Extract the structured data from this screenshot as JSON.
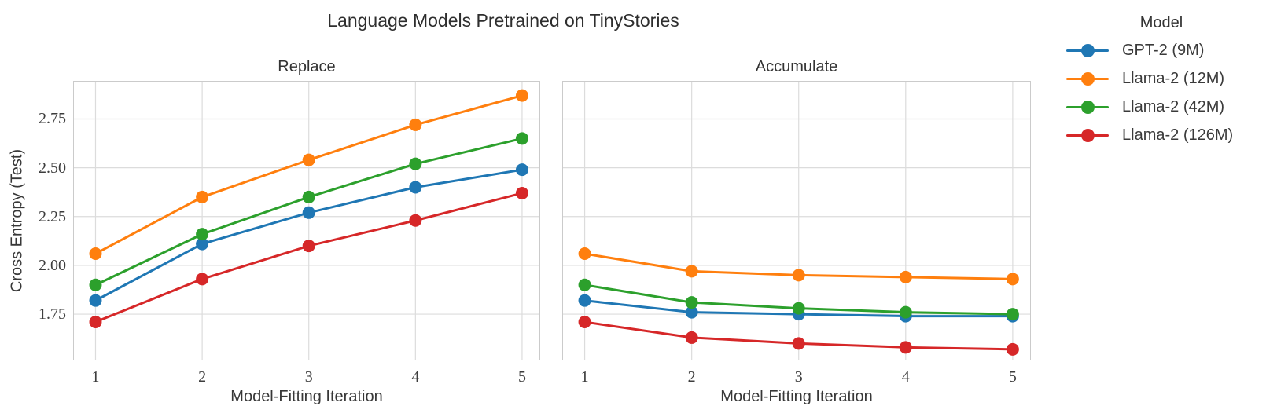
{
  "figure": {
    "title": "Language Models Pretrained on TinyStories",
    "background": "#ffffff"
  },
  "chart_data": {
    "type": "line",
    "title": "Language Models Pretrained on TinyStories",
    "xlabel": "Model-Fitting Iteration",
    "ylabel": "Cross Entropy (Test)",
    "x": [
      1,
      2,
      3,
      4,
      5
    ],
    "xticks": [
      "1",
      "2",
      "3",
      "4",
      "5"
    ],
    "yticks": [
      1.75,
      2.0,
      2.25,
      2.5,
      2.75
    ],
    "ytick_labels": [
      "1.75",
      "2.00",
      "2.25",
      "2.50",
      "2.75"
    ],
    "xlim": [
      0.79,
      5.17
    ],
    "ylim": [
      1.513,
      2.945
    ],
    "grid": true,
    "legend_position": "right",
    "panels": [
      {
        "title": "Replace",
        "series": [
          {
            "name": "GPT-2 (9M)",
            "color": "#1f77b4",
            "values": [
              1.82,
              2.11,
              2.27,
              2.4,
              2.49
            ]
          },
          {
            "name": "Llama-2 (12M)",
            "color": "#ff7f0e",
            "values": [
              2.06,
              2.35,
              2.54,
              2.72,
              2.87
            ]
          },
          {
            "name": "Llama-2 (42M)",
            "color": "#2ca02c",
            "values": [
              1.9,
              2.16,
              2.35,
              2.52,
              2.65
            ]
          },
          {
            "name": "Llama-2 (126M)",
            "color": "#d62728",
            "values": [
              1.71,
              1.93,
              2.1,
              2.23,
              2.37
            ]
          }
        ]
      },
      {
        "title": "Accumulate",
        "series": [
          {
            "name": "GPT-2 (9M)",
            "color": "#1f77b4",
            "values": [
              1.82,
              1.76,
              1.75,
              1.74,
              1.74
            ]
          },
          {
            "name": "Llama-2 (12M)",
            "color": "#ff7f0e",
            "values": [
              2.06,
              1.97,
              1.95,
              1.94,
              1.93
            ]
          },
          {
            "name": "Llama-2 (42M)",
            "color": "#2ca02c",
            "values": [
              1.9,
              1.81,
              1.78,
              1.76,
              1.75
            ]
          },
          {
            "name": "Llama-2 (126M)",
            "color": "#d62728",
            "values": [
              1.71,
              1.63,
              1.6,
              1.58,
              1.57
            ]
          }
        ]
      }
    ]
  },
  "legend": {
    "title": "Model",
    "entries": [
      {
        "label": "GPT-2 (9M)",
        "color": "#1f77b4"
      },
      {
        "label": "Llama-2 (12M)",
        "color": "#ff7f0e"
      },
      {
        "label": "Llama-2 (42M)",
        "color": "#2ca02c"
      },
      {
        "label": "Llama-2 (126M)",
        "color": "#d62728"
      }
    ]
  },
  "style": {
    "grid_color": "#dcdcdc",
    "spine_color": "#cbcbcb",
    "line_width": 3,
    "marker_radius": 8
  }
}
